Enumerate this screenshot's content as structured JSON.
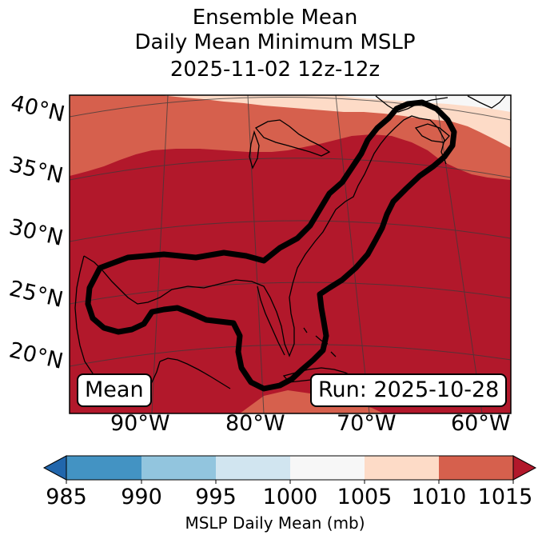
{
  "title": {
    "line1": "Ensemble Mean",
    "line2": "Daily Mean Minimum MSLP",
    "line3": "2025-11-02 12z-12z"
  },
  "map": {
    "lat_labels": [
      "40°N",
      "35°N",
      "30°N",
      "25°N",
      "20°N"
    ],
    "lon_labels": [
      "90°W",
      "80°W",
      "70°W",
      "60°W"
    ],
    "mean_box": "Mean",
    "run_box": "Run: 2025-10-28",
    "region": "Eastern United States, Gulf of Mexico and Western Atlantic",
    "contour_feature": "Black outline enclosing Gulf of Mexico and U.S. East Coast"
  },
  "colorbar": {
    "ticks": [
      "985",
      "990",
      "995",
      "1000",
      "1005",
      "1010",
      "1015"
    ],
    "label": "MSLP Daily Mean (mb)",
    "bins": [
      {
        "range": "<985",
        "color": "#2166ac"
      },
      {
        "range": "985-990",
        "color": "#4393c3"
      },
      {
        "range": "990-995",
        "color": "#92c5de"
      },
      {
        "range": "995-1000",
        "color": "#d1e5f0"
      },
      {
        "range": "1000-1005",
        "color": "#f7f7f7"
      },
      {
        "range": "1005-1010",
        "color": "#fddbc7"
      },
      {
        "range": "1010-1015",
        "color": "#d6604d"
      },
      {
        "range": ">1015",
        "color": "#b2182b"
      }
    ]
  },
  "colors": {
    "field_dominant": "#b2182b",
    "field_mid": "#d6604d",
    "field_light": "#fddbc7",
    "field_white": "#f7f7f7"
  }
}
